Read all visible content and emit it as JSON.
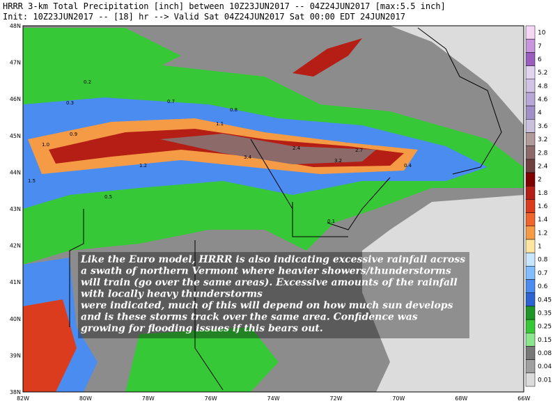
{
  "header": {
    "line1": "HRRR 3-km Total Precipitation [inch]  between 10Z23JUN2017 -- 04Z24JUN2017  [max:5.5 inch]",
    "line2": "Init: 10Z23JUN2017 -- [18] hr --> Valid Sat 04Z24JUN2017    Sat 00:00 EDT 24JUN2017"
  },
  "latitude_labels": [
    "48N",
    "47N",
    "46N",
    "45N",
    "44N",
    "43N",
    "42N",
    "41N",
    "40N",
    "39N",
    "38N"
  ],
  "longitude_labels": [
    "82W",
    "80W",
    "78W",
    "76W",
    "74W",
    "72W",
    "70W",
    "68W",
    "66W"
  ],
  "colorbar": [
    {
      "label": "10",
      "color": "#f5d8f5"
    },
    {
      "label": "7",
      "color": "#c896dc"
    },
    {
      "label": "6",
      "color": "#9a5fbe"
    },
    {
      "label": "5.2",
      "color": "#e0d6ef"
    },
    {
      "label": "4.8",
      "color": "#d0c4e6"
    },
    {
      "label": "4.6",
      "color": "#b8a8d8"
    },
    {
      "label": "4",
      "color": "#a090c8"
    },
    {
      "label": "3.6",
      "color": "#c8c0dc"
    },
    {
      "label": "3.2",
      "color": "#b09a9a"
    },
    {
      "label": "2.8",
      "color": "#8c6a6a"
    },
    {
      "label": "2.4",
      "color": "#6e4040"
    },
    {
      "label": "2",
      "color": "#800000"
    },
    {
      "label": "1.8",
      "color": "#b41e14"
    },
    {
      "label": "1.6",
      "color": "#dc3c1e"
    },
    {
      "label": "1.4",
      "color": "#f0642d"
    },
    {
      "label": "1.2",
      "color": "#f59b46"
    },
    {
      "label": "1",
      "color": "#ffe6a0"
    },
    {
      "label": "0.8",
      "color": "#c8e6ff"
    },
    {
      "label": "0.7",
      "color": "#82beff"
    },
    {
      "label": "0.6",
      "color": "#4b8cf0"
    },
    {
      "label": "0.45",
      "color": "#2d64d2"
    },
    {
      "label": "0.35",
      "color": "#1e9628"
    },
    {
      "label": "0.25",
      "color": "#37c837"
    },
    {
      "label": "0.15",
      "color": "#8ce68c"
    },
    {
      "label": "0.08",
      "color": "#787878"
    },
    {
      "label": "0.04",
      "color": "#a0a0a0"
    },
    {
      "label": "0.01",
      "color": "#dcdcdc"
    }
  ],
  "map_labels": [
    "0.2",
    "0.3",
    "0.7",
    "1.0",
    "0.9",
    "1.2",
    "2.4",
    "3.4",
    "2.7",
    "3.2",
    "1.5",
    "0.5",
    "0.1",
    "0.8",
    "1.1",
    "0.4"
  ],
  "annotation": [
    "Like the Euro model, HRRR is also indicating excessive rainfall across",
    "a swath of northern Vermont where heavier showers/thunderstorms",
    "will train (go over the same areas). Excessive amounts of the rainfall",
    "with locally heavy thunderstorms",
    "were indicated, much of this will depend on how much sun develops",
    "and is these storms track over the same area. Confidence was",
    "growing for flooding issues if this bears out."
  ]
}
